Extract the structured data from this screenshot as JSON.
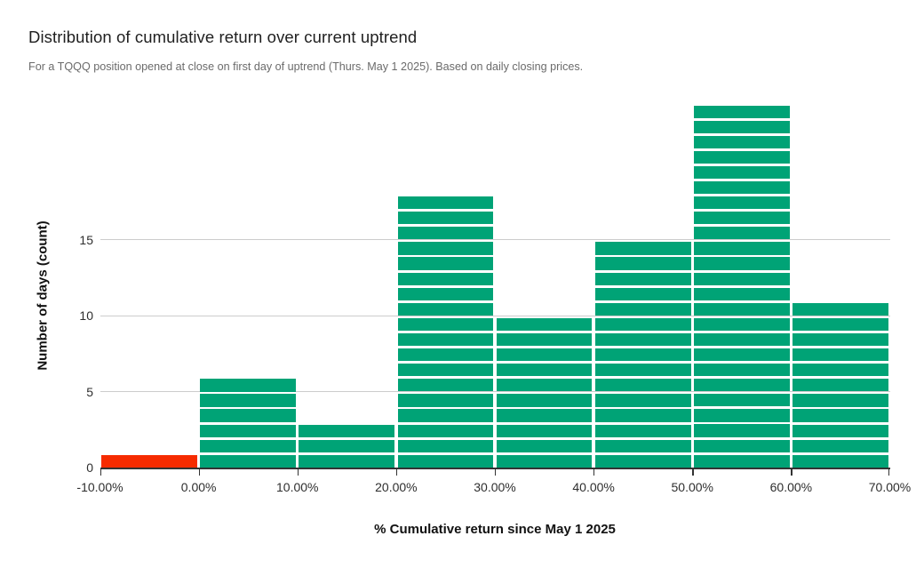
{
  "title": "Distribution of cumulative return over current uptrend",
  "subtitle": "For a TQQQ position opened at close on first day of uptrend (Thurs. May 1 2025). Based on daily closing prices.",
  "chart_data": {
    "type": "bar",
    "subtype": "histogram",
    "title": "Distribution of cumulative return over current uptrend",
    "subtitle": "For a TQQQ position opened at close on first day of uptrend (Thurs. May 1 2025). Based on daily closing prices.",
    "xlabel": "% Cumulative return since May 1 2025",
    "ylabel": "Number of days (count)",
    "bin_edges_pct": [
      -10,
      0,
      10,
      20,
      30,
      40,
      50,
      60,
      70
    ],
    "categories": [
      "-10.00% to 0.00%",
      "0.00% to 10.00%",
      "10.00% to 20.00%",
      "20.00% to 30.00%",
      "30.00% to 40.00%",
      "40.00% to 50.00%",
      "50.00% to 60.00%",
      "60.00% to 70.00%"
    ],
    "values": [
      1,
      6,
      3,
      18,
      10,
      15,
      24,
      11
    ],
    "bar_colors": [
      "#f62b00",
      "#00a376",
      "#00a376",
      "#00a376",
      "#00a376",
      "#00a376",
      "#00a376",
      "#00a376"
    ],
    "x_tick_labels": [
      "-10.00%",
      "0.00%",
      "10.00%",
      "20.00%",
      "30.00%",
      "40.00%",
      "50.00%",
      "60.00%",
      "70.00%"
    ],
    "y_ticks": [
      0,
      5,
      10,
      15
    ],
    "y_gridlines": [
      5,
      10,
      15
    ],
    "ylim": [
      0,
      24
    ],
    "grid": "horizontal",
    "legend": "none",
    "unit_segmented_bars": true,
    "colors": {
      "positive_bar": "#00a376",
      "negative_bar": "#f62b00",
      "gridline": "#cccccc",
      "axis_line": "#333333"
    }
  }
}
